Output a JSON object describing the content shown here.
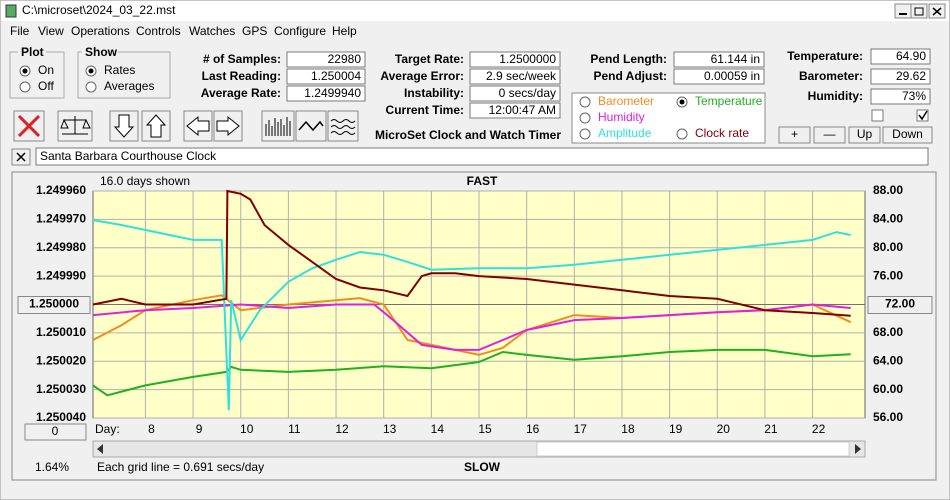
{
  "window": {
    "title": "C:\\microset\\2024_03_22.mst"
  },
  "menu": [
    "File",
    "View",
    "Operations",
    "Controls",
    "Watches",
    "GPS",
    "Configure",
    "Help"
  ],
  "plot_group": {
    "label": "Plot",
    "options": [
      "On",
      "Off"
    ]
  },
  "show_group": {
    "label": "Show",
    "options": [
      "Rates",
      "Averages"
    ]
  },
  "fields": [
    {
      "label": "# of Samples:",
      "value": "22980"
    },
    {
      "label": "Last Reading:",
      "value": "1.250004"
    },
    {
      "label": "Average Rate:",
      "value": "1.2499940"
    },
    {
      "label": "Target Rate:",
      "value": "1.2500000"
    },
    {
      "label": "Average Error:",
      "value": "2.9 sec/week"
    },
    {
      "label": "Instability:",
      "value": "0 secs/day"
    },
    {
      "label": "Current Time:",
      "value": "12:00:47 AM"
    },
    {
      "label": "Pend Length:",
      "value": "61.144 in"
    },
    {
      "label": "Pend Adjust:",
      "value": "0.00059 in"
    },
    {
      "label": "Temperature:",
      "value": "64.90"
    },
    {
      "label": "Barometer:",
      "value": "29.62"
    },
    {
      "label": "Humidity:",
      "value": "73%"
    }
  ],
  "app_label": "MicroSet Clock and Watch Timer",
  "buttons": [
    "+",
    "—",
    "Up",
    "Down"
  ],
  "clock_name": "Santa Barbara Courthouse Clock",
  "chart_data": {
    "type": "line",
    "days_shown": "16.0 days shown",
    "top_label": "FAST",
    "bottom_label": "SLOW",
    "x_label": "Day:",
    "zero_button": "0",
    "percent": "1.64%",
    "grid_note": "Each grid line = 0.691 secs/day",
    "background": "#ffffc8",
    "grid": true,
    "legend_selected": 1,
    "xlim": [
      6.9,
      23.1
    ],
    "xticks": [
      8,
      9,
      10,
      11,
      12,
      13,
      14,
      15,
      16,
      17,
      18,
      19,
      20,
      21,
      22
    ],
    "ylim": [
      1.25004,
      1.24996
    ],
    "yticks": [
      {
        "value": 1.24996,
        "label": "1.249960"
      },
      {
        "value": 1.24997,
        "label": "1.249970"
      },
      {
        "value": 1.24998,
        "label": "1.249980"
      },
      {
        "value": 1.24999,
        "label": "1.249990"
      },
      {
        "value": 1.25,
        "label": "1.250000"
      },
      {
        "value": 1.25001,
        "label": "1.250010"
      },
      {
        "value": 1.25002,
        "label": "1.250020"
      },
      {
        "value": 1.25003,
        "label": "1.250030"
      },
      {
        "value": 1.25004,
        "label": "1.250040"
      }
    ],
    "y2lim": [
      56,
      88
    ],
    "y2ticks": [
      {
        "value": 88,
        "label": "88.00"
      },
      {
        "value": 84,
        "label": "84.00"
      },
      {
        "value": 80,
        "label": "80.00"
      },
      {
        "value": 76,
        "label": "76.00"
      },
      {
        "value": 72,
        "label": "72.00"
      },
      {
        "value": 68,
        "label": "68.00"
      },
      {
        "value": 64,
        "label": "64.00"
      },
      {
        "value": 60,
        "label": "60.00"
      },
      {
        "value": 56,
        "label": "56.00"
      }
    ],
    "series": [
      {
        "name": "Barometer",
        "color": "#f08c1e",
        "axis": "y2",
        "x": [
          6.9,
          7.5,
          8,
          9,
          9.6,
          10,
          11,
          12,
          12.5,
          13,
          13.5,
          14,
          15,
          15.5,
          16,
          17,
          18,
          19,
          20,
          21,
          22,
          22.8
        ],
        "values": [
          67.0,
          69.1,
          71.2,
          72.6,
          73.3,
          71.2,
          72.0,
          72.6,
          72.9,
          72.0,
          67.0,
          66.3,
          64.9,
          65.9,
          68.4,
          70.5,
          70.1,
          70.5,
          70.9,
          71.2,
          72.0,
          69.5
        ]
      },
      {
        "name": "Temperature",
        "color": "#20b020",
        "axis": "y2",
        "x": [
          6.9,
          7.2,
          8,
          9,
          9.7,
          9.8,
          10,
          11,
          12,
          13,
          14,
          15,
          15.5,
          16,
          17,
          18,
          19,
          20,
          21,
          22,
          22.8
        ],
        "values": [
          60.6,
          59.2,
          60.6,
          61.8,
          62.5,
          63.2,
          62.8,
          62.5,
          62.8,
          63.3,
          63.0,
          63.9,
          65.3,
          64.9,
          64.2,
          64.7,
          65.3,
          65.6,
          65.6,
          64.7,
          65.0
        ]
      },
      {
        "name": "Humidity",
        "color": "#e020e0",
        "axis": "y2",
        "x": [
          6.9,
          8,
          9,
          10,
          11,
          12,
          12.8,
          13.2,
          13.8,
          14.5,
          15,
          15.5,
          16,
          17,
          18,
          19,
          20,
          21,
          22,
          22.8
        ],
        "values": [
          70.5,
          71.2,
          71.5,
          72.0,
          71.5,
          72.0,
          72.0,
          69.8,
          66.3,
          65.6,
          65.6,
          67.0,
          68.4,
          69.8,
          70.1,
          70.5,
          70.9,
          71.2,
          72.0,
          71.5
        ]
      },
      {
        "name": "Amplitude",
        "color": "#30e0e0",
        "axis": "y2",
        "x": [
          6.9,
          7.5,
          8,
          9,
          9.6,
          9.75,
          9.8,
          10,
          10.4,
          11,
          11.5,
          12,
          12.5,
          13,
          13.5,
          14,
          15,
          16,
          17,
          18,
          19,
          20,
          21,
          22,
          22.5,
          22.8
        ],
        "values": [
          83.9,
          83.2,
          82.5,
          81.1,
          81.1,
          57.1,
          72.6,
          67.0,
          71.2,
          75.2,
          77.1,
          78.3,
          79.4,
          79.0,
          78.0,
          76.9,
          77.1,
          77.1,
          77.6,
          78.3,
          79.0,
          79.7,
          80.4,
          81.1,
          82.2,
          81.8
        ]
      },
      {
        "name": "Clock rate",
        "color": "#800000",
        "axis": "y",
        "x": [
          6.9,
          7.5,
          8,
          9,
          9.7,
          9.72,
          10,
          10.2,
          10.5,
          11,
          11.5,
          12,
          12.5,
          13,
          13.5,
          13.8,
          14,
          14.5,
          15,
          16,
          17,
          18,
          19,
          20,
          21,
          22,
          22.8
        ],
        "values": [
          1.25,
          1.249998,
          1.25,
          1.25,
          1.249998,
          1.24996,
          1.249961,
          1.249963,
          1.249972,
          1.249979,
          1.249985,
          1.249991,
          1.249994,
          1.249995,
          1.249997,
          1.24999,
          1.249989,
          1.249989,
          1.24999,
          1.249991,
          1.249993,
          1.249995,
          1.249997,
          1.249998,
          1.250002,
          1.250003,
          1.250004
        ]
      }
    ]
  }
}
